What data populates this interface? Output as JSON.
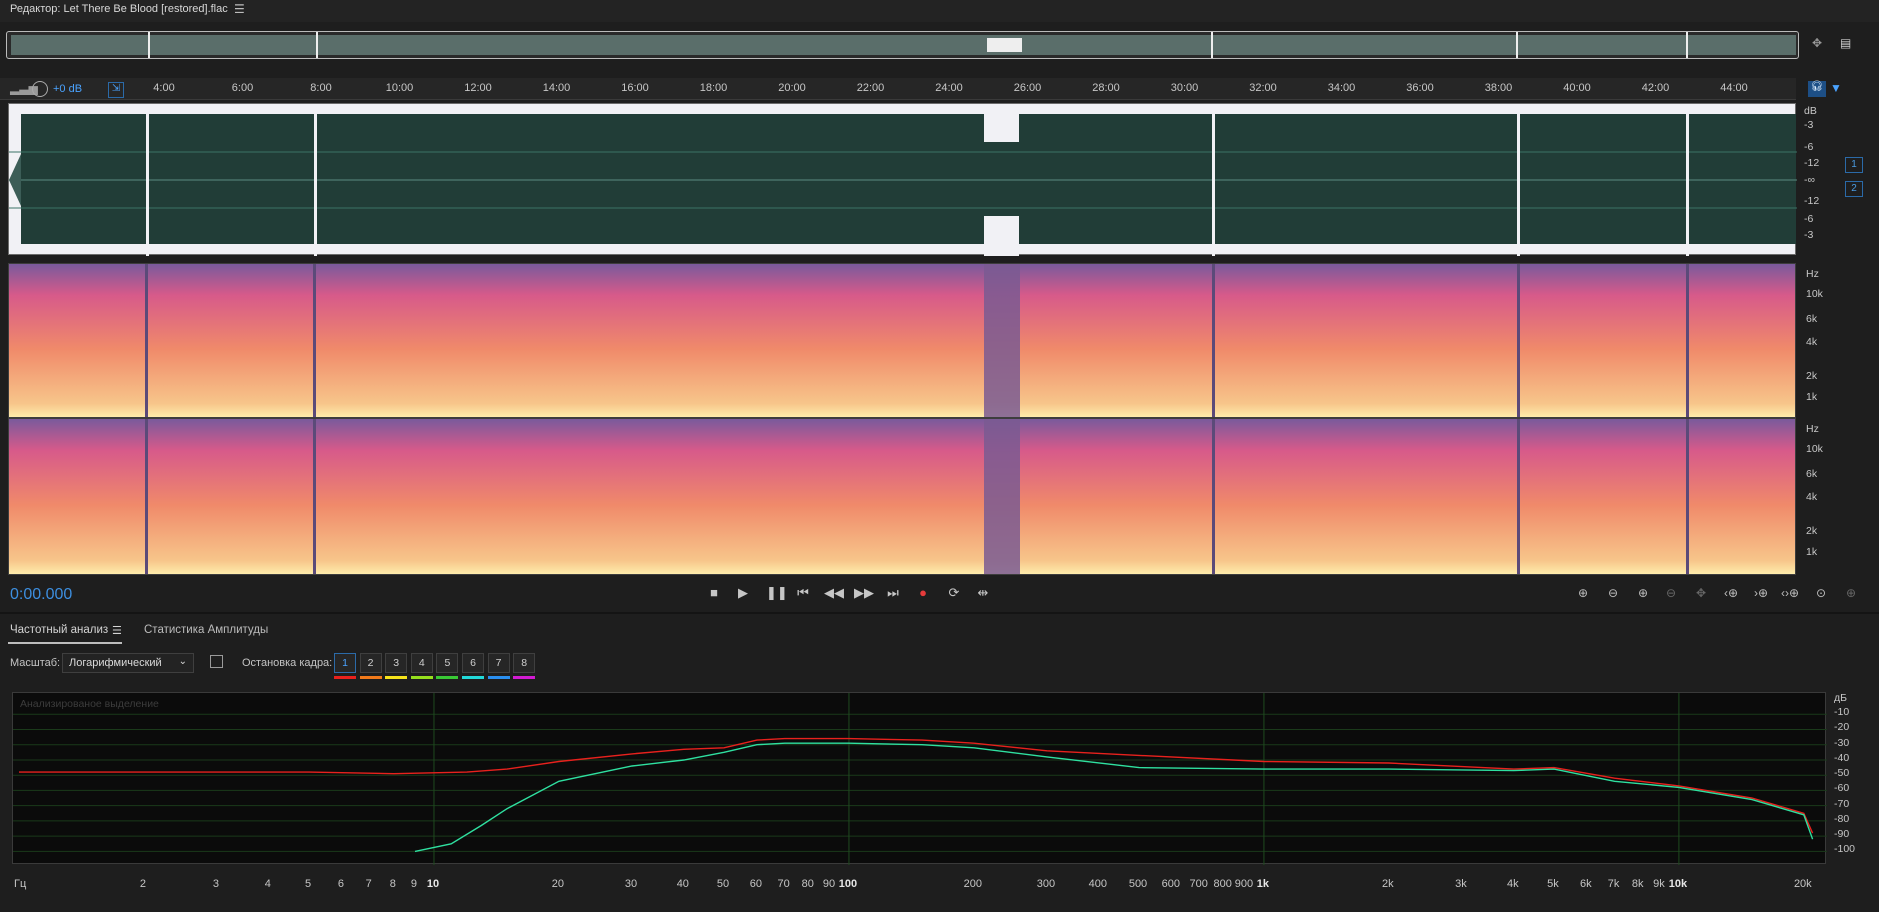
{
  "window": {
    "title": "Редактор: Let There Be Blood [restored].flac",
    "menu_icon": "hamburger-menu-icon"
  },
  "timeline": {
    "gain_label": "+0 dB",
    "ticks": [
      "4:00",
      "6:00",
      "8:00",
      "10:00",
      "12:00",
      "14:00",
      "16:00",
      "18:00",
      "20:00",
      "22:00",
      "24:00",
      "26:00",
      "28:00",
      "30:00",
      "32:00",
      "34:00",
      "36:00",
      "38:00",
      "40:00",
      "42:00",
      "44:00"
    ]
  },
  "waveform": {
    "db_unit": "dB",
    "db_labels": [
      "-3",
      "-6",
      "-12",
      "-∞",
      "-12",
      "-6",
      "-3"
    ],
    "channels": [
      "1",
      "2"
    ],
    "color": "#213d37"
  },
  "spectrogram": {
    "unit": "Hz",
    "channel_labels": [
      "10k",
      "6k",
      "4k",
      "2k",
      "1k"
    ]
  },
  "transport": {
    "timecode": "0:00.000",
    "buttons": [
      "stop",
      "play",
      "pause",
      "go-to-start",
      "rewind",
      "fast-forward",
      "go-to-end",
      "record",
      "loop",
      "skip-selection"
    ]
  },
  "tabs": [
    {
      "label": "Частотный анализ",
      "active": true
    },
    {
      "label": "Статистика Амплитуды",
      "active": false
    }
  ],
  "analysis": {
    "scale_label": "Масштаб:",
    "scale_value": "Логарифмический",
    "freeze_label": "Остановка кадра:",
    "frames": [
      {
        "label": "1",
        "color": "#e8211d",
        "active": true
      },
      {
        "label": "2",
        "color": "#f27a1a",
        "active": false
      },
      {
        "label": "3",
        "color": "#f6e31b",
        "active": false
      },
      {
        "label": "4",
        "color": "#96e01d",
        "active": false
      },
      {
        "label": "5",
        "color": "#39c935",
        "active": false
      },
      {
        "label": "6",
        "color": "#22d9d9",
        "active": false
      },
      {
        "label": "7",
        "color": "#2a8ff0",
        "active": false
      },
      {
        "label": "8",
        "color": "#d21bd2",
        "active": false
      }
    ],
    "graph_caption": "Анализированое выделение",
    "y_unit": "дБ",
    "y_ticks": [
      "-10",
      "-20",
      "-30",
      "-40",
      "-50",
      "-60",
      "-70",
      "-80",
      "-90",
      "-100"
    ],
    "x_unit": "Гц",
    "x_ticks": [
      "2",
      "3",
      "4",
      "5",
      "6",
      "7",
      "8",
      "9",
      "10",
      "20",
      "30",
      "40",
      "50",
      "60",
      "70",
      "80",
      "90",
      "100",
      "200",
      "300",
      "400",
      "500",
      "600",
      "700",
      "800",
      "900",
      "1k",
      "2k",
      "3k",
      "4k",
      "5k",
      "6k",
      "7k",
      "8k",
      "9k",
      "10k",
      "20k"
    ]
  },
  "chart_data": {
    "type": "line",
    "xscale": "log",
    "xlabel": "Гц",
    "ylabel": "дБ",
    "xlim": [
      1,
      22000
    ],
    "ylim": [
      -105,
      0
    ],
    "series": [
      {
        "color": "#e8211d",
        "x": [
          1,
          3,
          5,
          8,
          12,
          15,
          20,
          30,
          40,
          50,
          60,
          70,
          100,
          150,
          200,
          300,
          500,
          1000,
          2000,
          4000,
          5000,
          7000,
          10000,
          15000,
          20000,
          21000
        ],
        "values": [
          -48,
          -48,
          -48,
          -49,
          -48,
          -46,
          -41,
          -36,
          -33,
          -32,
          -27,
          -26,
          -26,
          -27,
          -29,
          -34,
          -37,
          -41,
          -42,
          -46,
          -45,
          -52,
          -57,
          -65,
          -75,
          -88
        ]
      },
      {
        "color": "#2fe0a0",
        "x": [
          9,
          11,
          13,
          15,
          20,
          30,
          40,
          50,
          60,
          70,
          100,
          150,
          200,
          300,
          500,
          1000,
          2000,
          4000,
          5000,
          7000,
          10000,
          15000,
          20000,
          21000
        ],
        "values": [
          -100,
          -95,
          -83,
          -72,
          -54,
          -44,
          -40,
          -35,
          -30,
          -29,
          -29,
          -30,
          -32,
          -38,
          -45,
          -46,
          -46,
          -47,
          -46,
          -54,
          -58,
          -66,
          -76,
          -92
        ]
      }
    ]
  }
}
